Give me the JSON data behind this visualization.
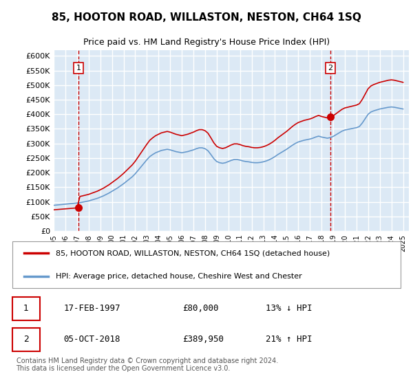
{
  "title": "85, HOOTON ROAD, WILLASTON, NESTON, CH64 1SQ",
  "subtitle": "Price paid vs. HM Land Registry's House Price Index (HPI)",
  "background_color": "#dce9f5",
  "plot_bg_color": "#dce9f5",
  "grid_color": "#ffffff",
  "ylim": [
    0,
    620000
  ],
  "yticks": [
    0,
    50000,
    100000,
    150000,
    200000,
    250000,
    300000,
    350000,
    400000,
    450000,
    500000,
    550000,
    600000
  ],
  "xlim_start": 1995,
  "xlim_end": 2025.5,
  "xticks": [
    1995,
    1996,
    1997,
    1998,
    1999,
    2000,
    2001,
    2002,
    2003,
    2004,
    2005,
    2006,
    2007,
    2008,
    2009,
    2010,
    2011,
    2012,
    2013,
    2014,
    2015,
    2016,
    2017,
    2018,
    2019,
    2020,
    2021,
    2022,
    2023,
    2024,
    2025
  ],
  "sale1_x": 1997.125,
  "sale1_y": 80000,
  "sale2_x": 2018.75,
  "sale2_y": 389950,
  "sale1_label": "1",
  "sale2_label": "2",
  "red_line_color": "#cc0000",
  "blue_line_color": "#6699cc",
  "marker_color": "#cc0000",
  "dashed_line_color": "#cc0000",
  "legend_label_red": "85, HOOTON ROAD, WILLASTON, NESTON, CH64 1SQ (detached house)",
  "legend_label_blue": "HPI: Average price, detached house, Cheshire West and Chester",
  "table_row1": [
    "1",
    "17-FEB-1997",
    "£80,000",
    "13% ↓ HPI"
  ],
  "table_row2": [
    "2",
    "05-OCT-2018",
    "£389,950",
    "21% ↑ HPI"
  ],
  "footer": "Contains HM Land Registry data © Crown copyright and database right 2024.\nThis data is licensed under the Open Government Licence v3.0."
}
